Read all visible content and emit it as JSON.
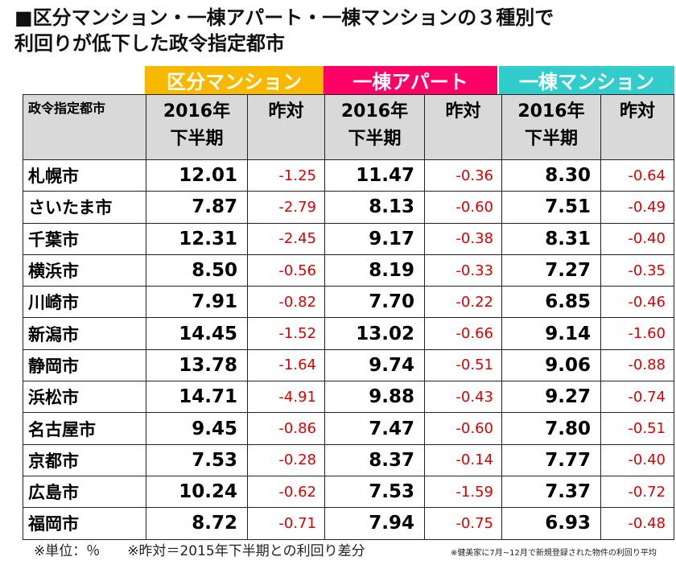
{
  "title_line1": "■区分マンション・一棟アパート・一棟マンションの３種別で",
  "title_line2": "利回りが低下した政令指定都市",
  "categories": [
    {
      "label": "区分マンション",
      "color": "#F9B800"
    },
    {
      "label": "一棟アパート",
      "color": "#FF0066"
    },
    {
      "label": "一棟マンション",
      "color": "#33CCCC"
    }
  ],
  "headers": {
    "city": "政令指定都市",
    "period": "2016年\n下半期",
    "diff": "昨対"
  },
  "rows": [
    [
      "札幌市",
      "12.01",
      "-1.25",
      "11.47",
      "-0.36",
      "8.30",
      "-0.64"
    ],
    [
      "さいたま市",
      "7.87",
      "-2.79",
      "8.13",
      "-0.60",
      "7.51",
      "-0.49"
    ],
    [
      "千葉市",
      "12.31",
      "-2.45",
      "9.17",
      "-0.38",
      "8.31",
      "-0.40"
    ],
    [
      "横浜市",
      "8.50",
      "-0.56",
      "8.19",
      "-0.33",
      "7.27",
      "-0.35"
    ],
    [
      "川崎市",
      "7.91",
      "-0.82",
      "7.70",
      "-0.22",
      "6.85",
      "-0.46"
    ],
    [
      "新潟市",
      "14.45",
      "-1.52",
      "13.02",
      "-0.66",
      "9.14",
      "-1.60"
    ],
    [
      "静岡市",
      "13.78",
      "-1.64",
      "9.74",
      "-0.51",
      "9.06",
      "-0.88"
    ],
    [
      "浜松市",
      "14.71",
      "-4.91",
      "9.88",
      "-0.43",
      "9.27",
      "-0.74"
    ],
    [
      "名古屋市",
      "9.45",
      "-0.86",
      "7.47",
      "-0.60",
      "7.80",
      "-0.51"
    ],
    [
      "京都市",
      "7.53",
      "-0.28",
      "8.37",
      "-0.14",
      "7.77",
      "-0.40"
    ],
    [
      "広島市",
      "10.24",
      "-0.62",
      "7.53",
      "-1.59",
      "7.37",
      "-0.72"
    ],
    [
      "福岡市",
      "8.72",
      "-0.71",
      "7.94",
      "-0.75",
      "6.93",
      "-0.48"
    ]
  ],
  "footnote_unit": "※単位：％　　※昨対＝2015年下半期との利回り差分",
  "footnote_source": "※健美家に7月~12月で新規登録された物件の利回り平均"
}
